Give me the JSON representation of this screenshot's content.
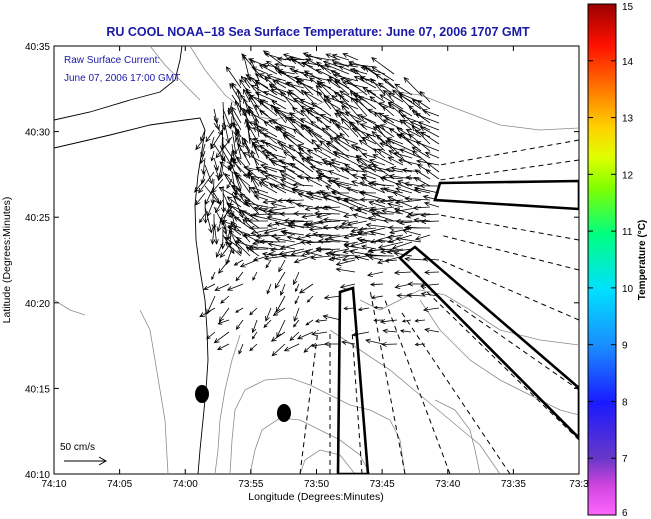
{
  "title": "RU COOL  NOAA–18  Sea Surface Temperature:  June 07, 2006 1707 GMT",
  "annotation": {
    "line1": "Raw Surface Current:",
    "line2": "June 07, 2006 17:00 GMT"
  },
  "axes": {
    "xlabel": "Longitude (Degrees:Minutes)",
    "ylabel": "Latitude (Degrees:Minutes)",
    "x_ticks": [
      "74:10",
      "74:05",
      "74:00",
      "73:55",
      "73:50",
      "73:45",
      "73:40",
      "73:35",
      "73:3"
    ],
    "y_ticks": [
      "40:35",
      "40:30",
      "40:25",
      "40:20",
      "40:15",
      "40:10"
    ]
  },
  "scale_label": "50 cm/s",
  "colorbar": {
    "label": "Temperature (°C)",
    "ticks": [
      "15",
      "14",
      "13",
      "12",
      "11",
      "10",
      "9",
      "8",
      "7",
      "6"
    ],
    "range": [
      6,
      15
    ]
  },
  "colors": {
    "title": "#1a1aa6",
    "arrows": "#000000",
    "contours": "#8c8c8c"
  }
}
